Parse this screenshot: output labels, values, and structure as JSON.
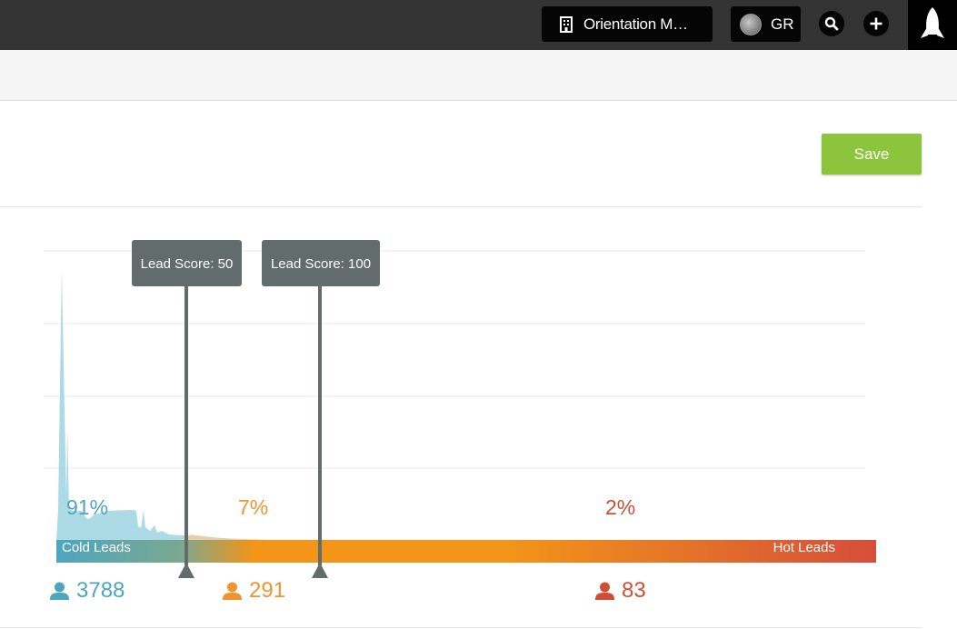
{
  "header": {
    "org_name": "Orientation M…",
    "user_initials": "GR",
    "icons": [
      "building-icon",
      "avatar",
      "search-icon",
      "plus-icon",
      "rocket-icon"
    ]
  },
  "toolbar": {
    "save_label": "Save"
  },
  "scoring": {
    "markers": [
      {
        "label": "Lead Score: 50",
        "score": 50
      },
      {
        "label": "Lead Score: 100",
        "score": 100
      }
    ],
    "bar": {
      "cold_label": "Cold Leads",
      "hot_label": "Hot Leads"
    },
    "segments": [
      {
        "name": "cold",
        "percent": "91%",
        "count": "3788",
        "color": "#4ea6bd"
      },
      {
        "name": "warm",
        "percent": "7%",
        "count": "291",
        "color": "#ef9431"
      },
      {
        "name": "hot",
        "percent": "2%",
        "count": "83",
        "color": "#cf4f36"
      }
    ]
  },
  "colors": {
    "accent_save": "#8cc43c",
    "marker": "#626c6c",
    "distribution": "#a8d8e4",
    "gradient": [
      "#4ea6bd",
      "#f29518",
      "#d54e3a"
    ]
  }
}
